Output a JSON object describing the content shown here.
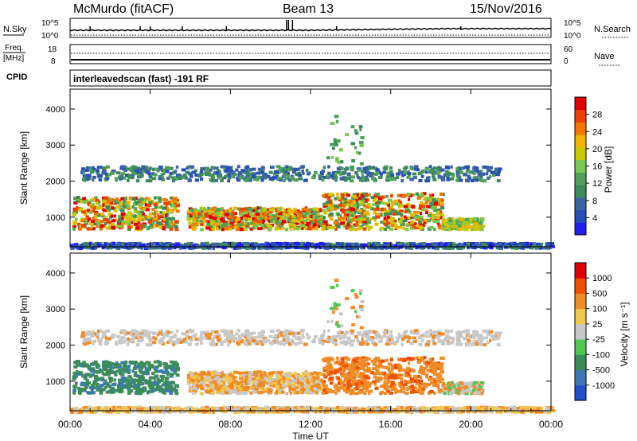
{
  "header": {
    "station": "McMurdo (fitACF)",
    "beam": "Beam 13",
    "date": "15/Nov/2016"
  },
  "top_panels": {
    "nsky_label": "N.Sky",
    "nsearch_label": "N.Search",
    "nsky_ticks": [
      "10^5",
      "10^0"
    ],
    "nsearch_ticks": [
      "10^5",
      "10^0"
    ],
    "freq_label_1": "Freq.",
    "freq_label_2": "[MHz]",
    "freq_ticks": [
      "18",
      "8"
    ],
    "nave_label": "Nave",
    "nave_ticks": [
      "60",
      "0"
    ],
    "cpid_label": "CPID",
    "cpid_text": "interleavedscan (fast) -191 RF"
  },
  "chart_data": [
    {
      "type": "heatmap",
      "name": "power",
      "ylabel": "Slant Range [km]",
      "yticks": [
        "4000",
        "3000",
        "2000",
        "1000"
      ],
      "ylim": [
        180,
        4550
      ],
      "colorbar_label": "Power [dB]",
      "colorbar_ticks": [
        "28",
        "24",
        "20",
        "16",
        "12",
        "8",
        "4"
      ],
      "colors": [
        "#1f1ff0",
        "#2850b4",
        "#3c64a0",
        "#3c8c5a",
        "#50a05a",
        "#78c850",
        "#c8c800",
        "#f0b400",
        "#f07800",
        "#f04000",
        "#e00000"
      ]
    },
    {
      "type": "heatmap",
      "name": "velocity",
      "ylabel": "Slant Range [km]",
      "yticks": [
        "4000",
        "3000",
        "2000",
        "1000"
      ],
      "ylim": [
        180,
        4550
      ],
      "colorbar_label": "Velocity [m s⁻¹]",
      "colorbar_ticks": [
        "1000",
        "500",
        "100",
        "25",
        "-25",
        "-100",
        "-500",
        "-1000"
      ],
      "colors": [
        "#2050c8",
        "#3c78b4",
        "#3c8c5a",
        "#50c850",
        "#c8c8c8",
        "#f0c850",
        "#f08c28",
        "#f05000",
        "#e00000"
      ],
      "xlabel": "Time UT",
      "xticks": [
        "00:00",
        "04:00",
        "08:00",
        "12:00",
        "16:00",
        "20:00",
        "00:00"
      ],
      "xlim": [
        0,
        24
      ]
    }
  ]
}
